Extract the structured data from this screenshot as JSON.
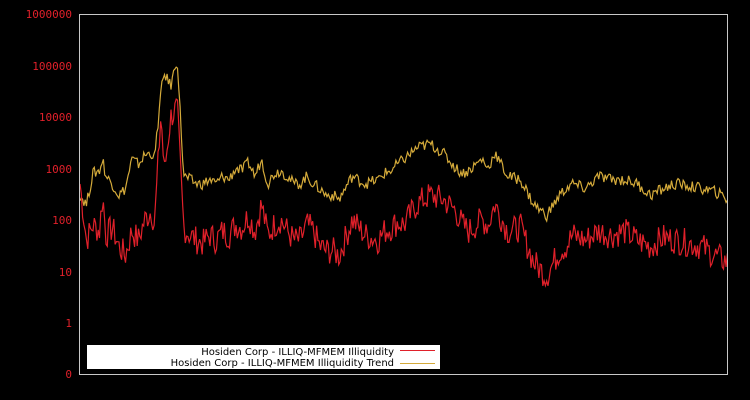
{
  "chart_data": {
    "type": "line",
    "title": "",
    "xlabel": "",
    "ylabel": "",
    "yscale": "log",
    "ylim": [
      0.1,
      1000000
    ],
    "yticks": [
      "1000000",
      "100000",
      "10000",
      "1000",
      "100",
      "10",
      "1",
      "0"
    ],
    "grid": false,
    "legend_position": "lower-left",
    "background": "#000000",
    "frame_color": "#c8c8c8",
    "series": [
      {
        "name": "Hosiden Corp - ILLIQ-MFMEM Illiquidity",
        "color": "#e0202a",
        "points_x_frac": [
          0.0,
          0.01,
          0.02,
          0.03,
          0.035,
          0.04,
          0.05,
          0.06,
          0.07,
          0.08,
          0.09,
          0.1,
          0.11,
          0.115,
          0.125,
          0.13,
          0.14,
          0.15,
          0.16,
          0.17,
          0.18,
          0.19,
          0.2,
          0.21,
          0.22,
          0.23,
          0.24,
          0.25,
          0.26,
          0.27,
          0.28,
          0.29,
          0.3,
          0.31,
          0.32,
          0.33,
          0.34,
          0.35,
          0.36,
          0.37,
          0.38,
          0.39,
          0.4,
          0.42,
          0.44,
          0.46,
          0.47,
          0.48,
          0.49,
          0.5,
          0.52,
          0.54,
          0.56,
          0.58,
          0.59,
          0.6,
          0.62,
          0.63,
          0.64,
          0.66,
          0.68,
          0.7,
          0.72,
          0.74,
          0.75,
          0.76,
          0.78,
          0.8,
          0.82,
          0.84,
          0.86,
          0.88,
          0.9,
          0.92,
          0.94,
          0.96,
          0.98,
          1.0
        ],
        "values": [
          500,
          40,
          80,
          60,
          300,
          50,
          70,
          30,
          20,
          60,
          40,
          100,
          150,
          80,
          12000,
          800,
          10000,
          15000,
          70,
          50,
          40,
          35,
          50,
          40,
          60,
          50,
          80,
          70,
          120,
          60,
          200,
          50,
          80,
          100,
          60,
          40,
          40,
          80,
          60,
          30,
          25,
          25,
          20,
          100,
          50,
          40,
          60,
          70,
          90,
          80,
          200,
          300,
          250,
          150,
          80,
          60,
          100,
          80,
          200,
          60,
          70,
          15,
          8,
          25,
          30,
          50,
          40,
          60,
          50,
          60,
          40,
          30,
          45,
          40,
          35,
          30,
          20,
          15
        ]
      },
      {
        "name": "Hosiden Corp - ILLIQ-MFMEM Illiquidity Trend",
        "color": "#d4aa3a",
        "points_x_frac": [
          0.0,
          0.01,
          0.02,
          0.03,
          0.035,
          0.04,
          0.05,
          0.06,
          0.07,
          0.08,
          0.09,
          0.1,
          0.11,
          0.115,
          0.125,
          0.13,
          0.14,
          0.15,
          0.16,
          0.17,
          0.18,
          0.19,
          0.2,
          0.21,
          0.22,
          0.23,
          0.24,
          0.25,
          0.26,
          0.27,
          0.28,
          0.29,
          0.3,
          0.31,
          0.32,
          0.33,
          0.34,
          0.35,
          0.36,
          0.37,
          0.38,
          0.39,
          0.4,
          0.42,
          0.44,
          0.46,
          0.47,
          0.48,
          0.49,
          0.5,
          0.52,
          0.54,
          0.56,
          0.58,
          0.59,
          0.6,
          0.62,
          0.63,
          0.64,
          0.66,
          0.68,
          0.7,
          0.72,
          0.74,
          0.75,
          0.76,
          0.78,
          0.8,
          0.82,
          0.84,
          0.86,
          0.88,
          0.9,
          0.92,
          0.94,
          0.96,
          0.98,
          1.0
        ],
        "values": [
          300,
          200,
          800,
          900,
          1500,
          700,
          500,
          300,
          400,
          1500,
          1200,
          1800,
          2000,
          1500,
          30000,
          70000,
          40000,
          140000,
          700,
          600,
          500,
          500,
          600,
          500,
          700,
          600,
          1000,
          900,
          1300,
          700,
          1500,
          500,
          800,
          900,
          700,
          500,
          500,
          700,
          500,
          400,
          300,
          300,
          250,
          700,
          500,
          600,
          800,
          900,
          1200,
          1500,
          2500,
          3000,
          2000,
          1000,
          800,
          900,
          1500,
          1000,
          2000,
          700,
          600,
          200,
          120,
          300,
          400,
          500,
          400,
          700,
          600,
          600,
          500,
          300,
          400,
          500,
          450,
          400,
          350,
          250
        ]
      }
    ],
    "legend": [
      {
        "label": "Hosiden Corp - ILLIQ-MFMEM Illiquidity",
        "color": "#e0202a"
      },
      {
        "label": "Hosiden Corp - ILLIQ-MFMEM Illiquidity Trend",
        "color": "#d4aa3a"
      }
    ]
  },
  "axis": {
    "y_labels": [
      "1000000",
      "100000",
      "10000",
      "1000",
      "100",
      "10",
      "1",
      "0"
    ]
  },
  "legend": {
    "item1": "Hosiden Corp - ILLIQ-MFMEM Illiquidity",
    "item2": "Hosiden Corp - ILLIQ-MFMEM Illiquidity Trend"
  }
}
